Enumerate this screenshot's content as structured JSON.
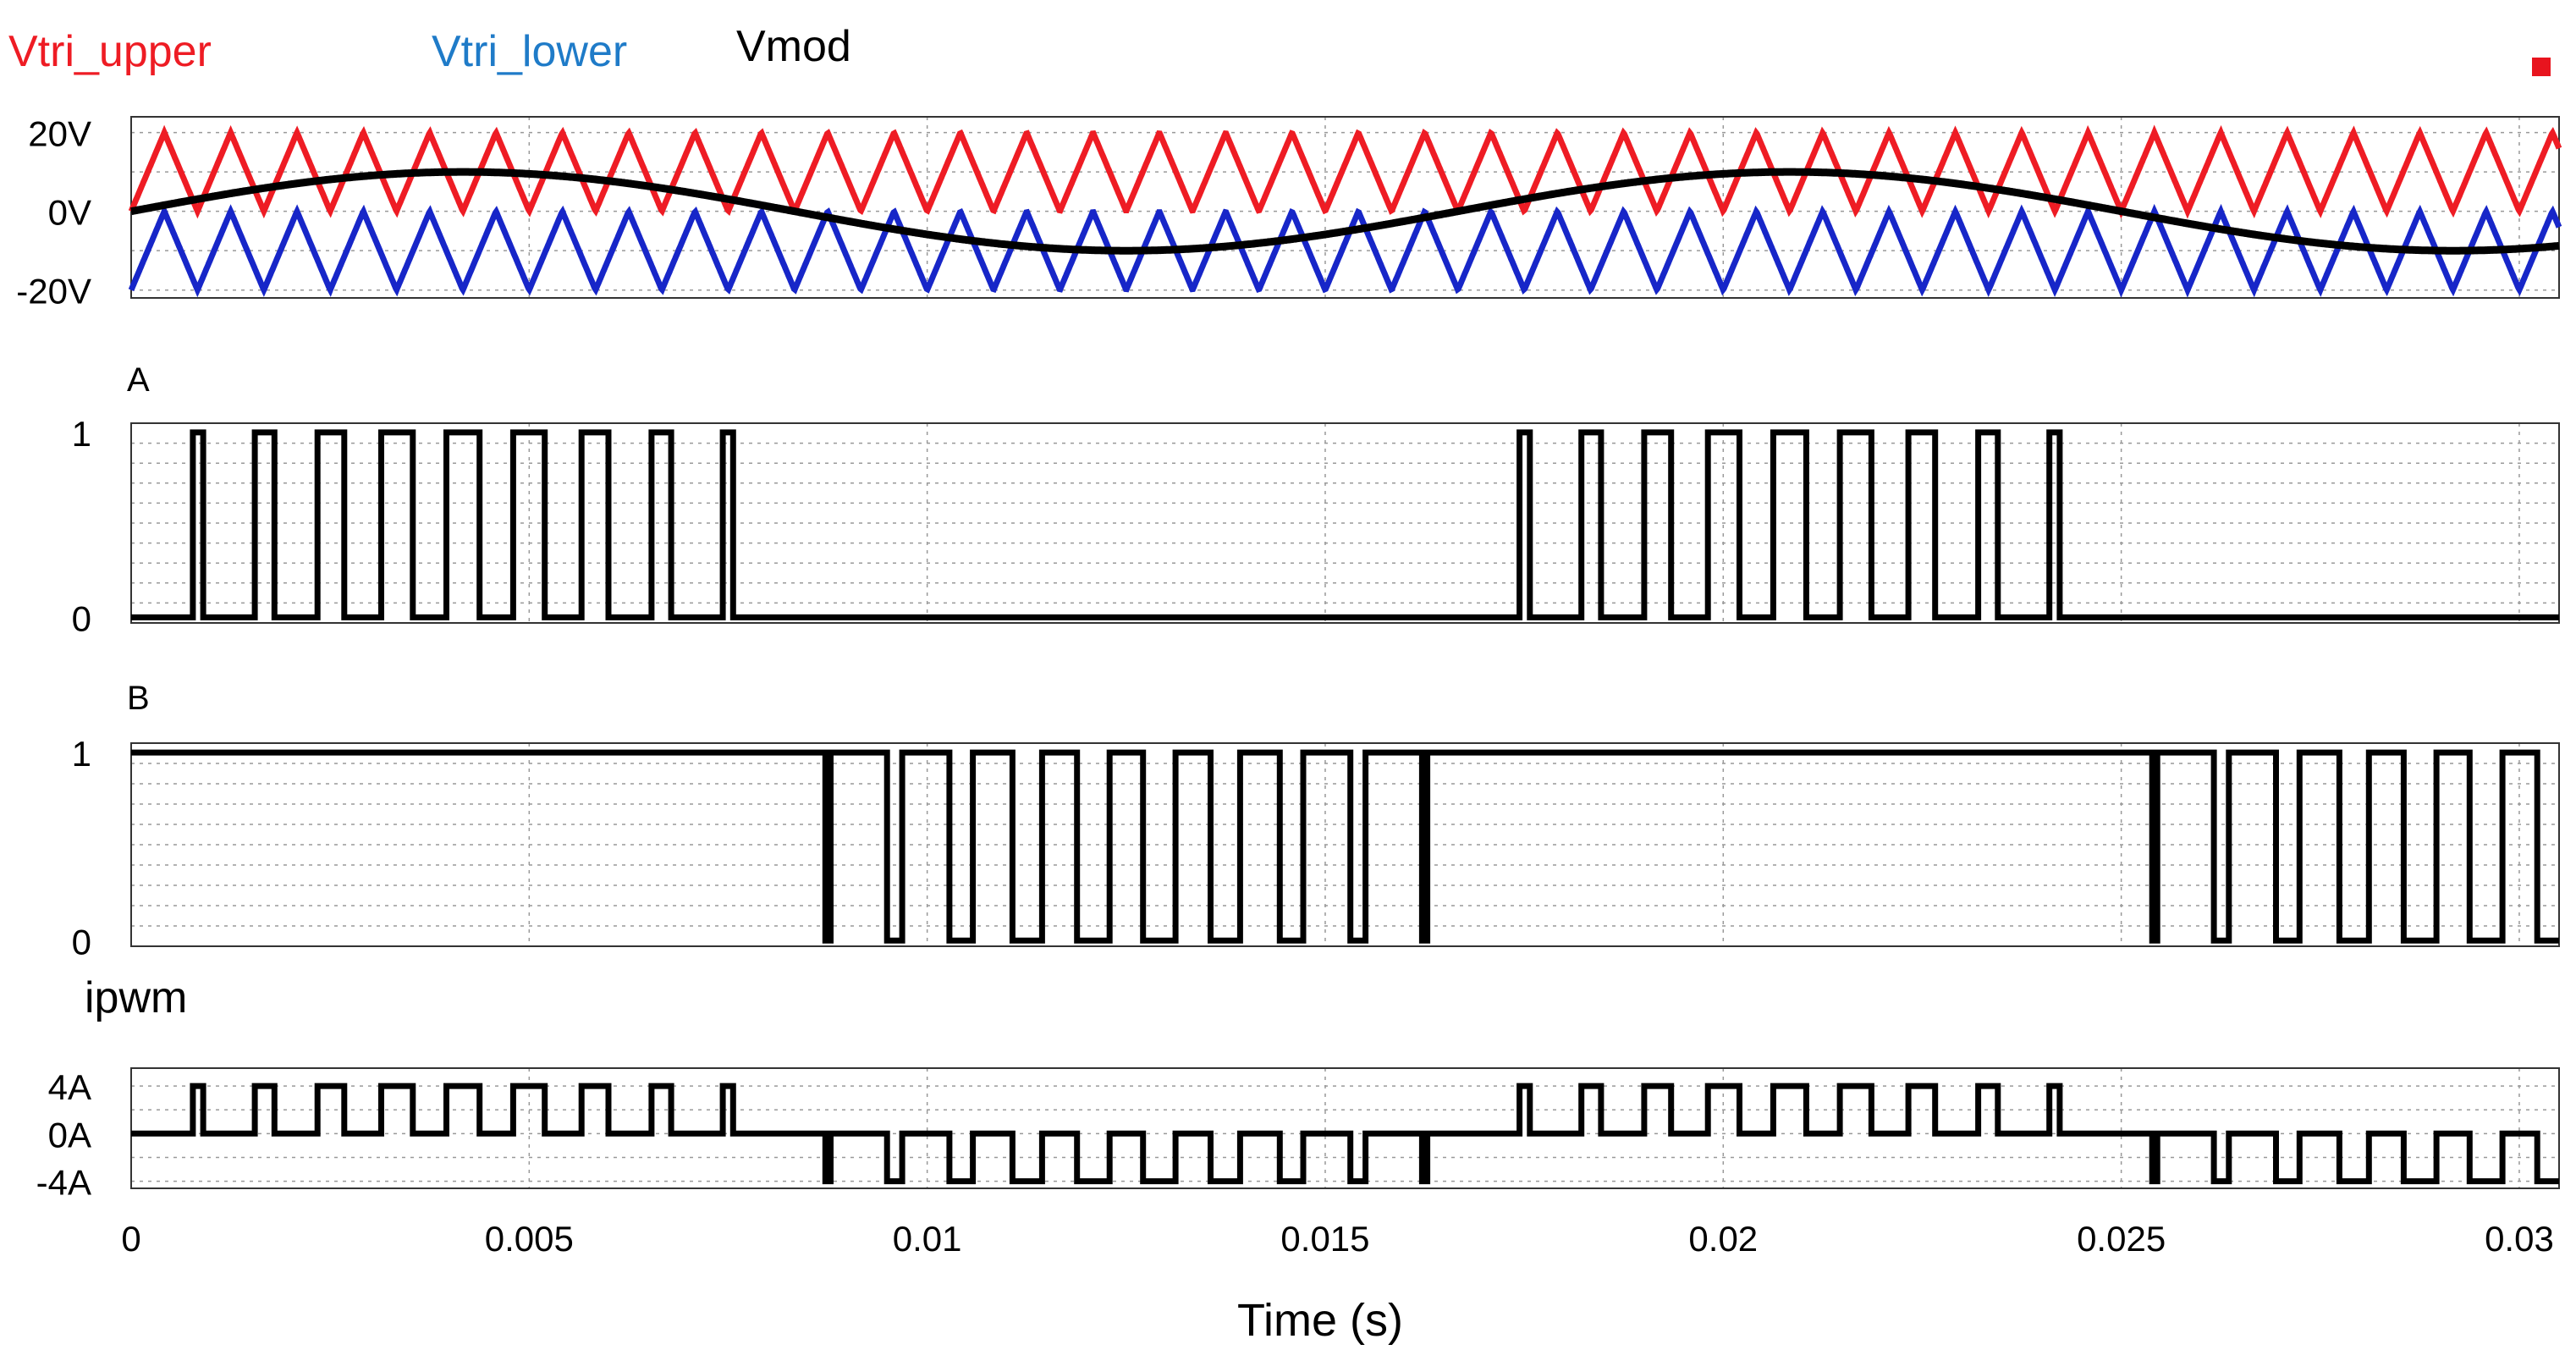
{
  "colors": {
    "upper": "#ee1c24",
    "lower": "#1726c8",
    "mod": "#000000",
    "legend_lower_text": "#1f7bc8",
    "marker": "#e8141e",
    "grid": "#999999",
    "frame": "#333333"
  },
  "chart_data": {
    "type": "line",
    "title": "",
    "xlabel": "Time (s)",
    "xlim": [
      0,
      0.0305
    ],
    "x_ticks": [
      {
        "value": 0,
        "label": "0"
      },
      {
        "value": 0.005,
        "label": "0.005"
      },
      {
        "value": 0.01,
        "label": "0.01"
      },
      {
        "value": 0.015,
        "label": "0.015"
      },
      {
        "value": 0.02,
        "label": "0.02"
      },
      {
        "value": 0.025,
        "label": "0.025"
      },
      {
        "value": 0.03,
        "label": "0.03"
      }
    ],
    "carrier_frequency_hz": 1200,
    "modulation_frequency_hz": 60,
    "carrier_amplitude": 20,
    "modulation_amplitude": 10,
    "panels": [
      {
        "id": "voltages",
        "title": "",
        "ylim": [
          -22,
          24
        ],
        "y_ticks": [
          {
            "value": 20,
            "label": "20V"
          },
          {
            "value": 0,
            "label": "0V"
          },
          {
            "value": -20,
            "label": "-20V"
          }
        ],
        "legend": [
          "Vtri_upper",
          "Vtri_lower",
          "Vmod"
        ],
        "series": [
          {
            "name": "Vtri_upper",
            "kind": "triangle",
            "min": 0,
            "max": 20
          },
          {
            "name": "Vtri_lower",
            "kind": "triangle",
            "min": -20,
            "max": 0
          },
          {
            "name": "Vmod",
            "kind": "sine",
            "amplitude": 10
          }
        ]
      },
      {
        "id": "gate-a",
        "title": "A",
        "ylim": [
          -0.03,
          1.05
        ],
        "y_ticks": [
          {
            "value": 1,
            "label": "1"
          },
          {
            "value": 0,
            "label": "0"
          }
        ],
        "series": [
          {
            "name": "A",
            "kind": "pwm",
            "on_value": 1,
            "off_value": 0,
            "rule": "Vmod > Vtri_upper"
          }
        ]
      },
      {
        "id": "gate-b",
        "title": "B",
        "ylim": [
          -0.03,
          1.05
        ],
        "y_ticks": [
          {
            "value": 1,
            "label": "1"
          },
          {
            "value": 0,
            "label": "0"
          }
        ],
        "series": [
          {
            "name": "B",
            "kind": "pwm",
            "on_value": 1,
            "off_value": 0,
            "rule": "Vmod > Vtri_lower"
          }
        ]
      },
      {
        "id": "ipwm",
        "title": "ipwm",
        "ylim": [
          -4.6,
          5.5
        ],
        "y_ticks": [
          {
            "value": 4,
            "label": "4A"
          },
          {
            "value": 0,
            "label": "0A"
          },
          {
            "value": -4,
            "label": "-4A"
          }
        ],
        "series": [
          {
            "name": "ipwm",
            "kind": "pwm_current",
            "amplitude": 4,
            "rule": "4*A - 4*(1-B)"
          }
        ]
      }
    ]
  }
}
